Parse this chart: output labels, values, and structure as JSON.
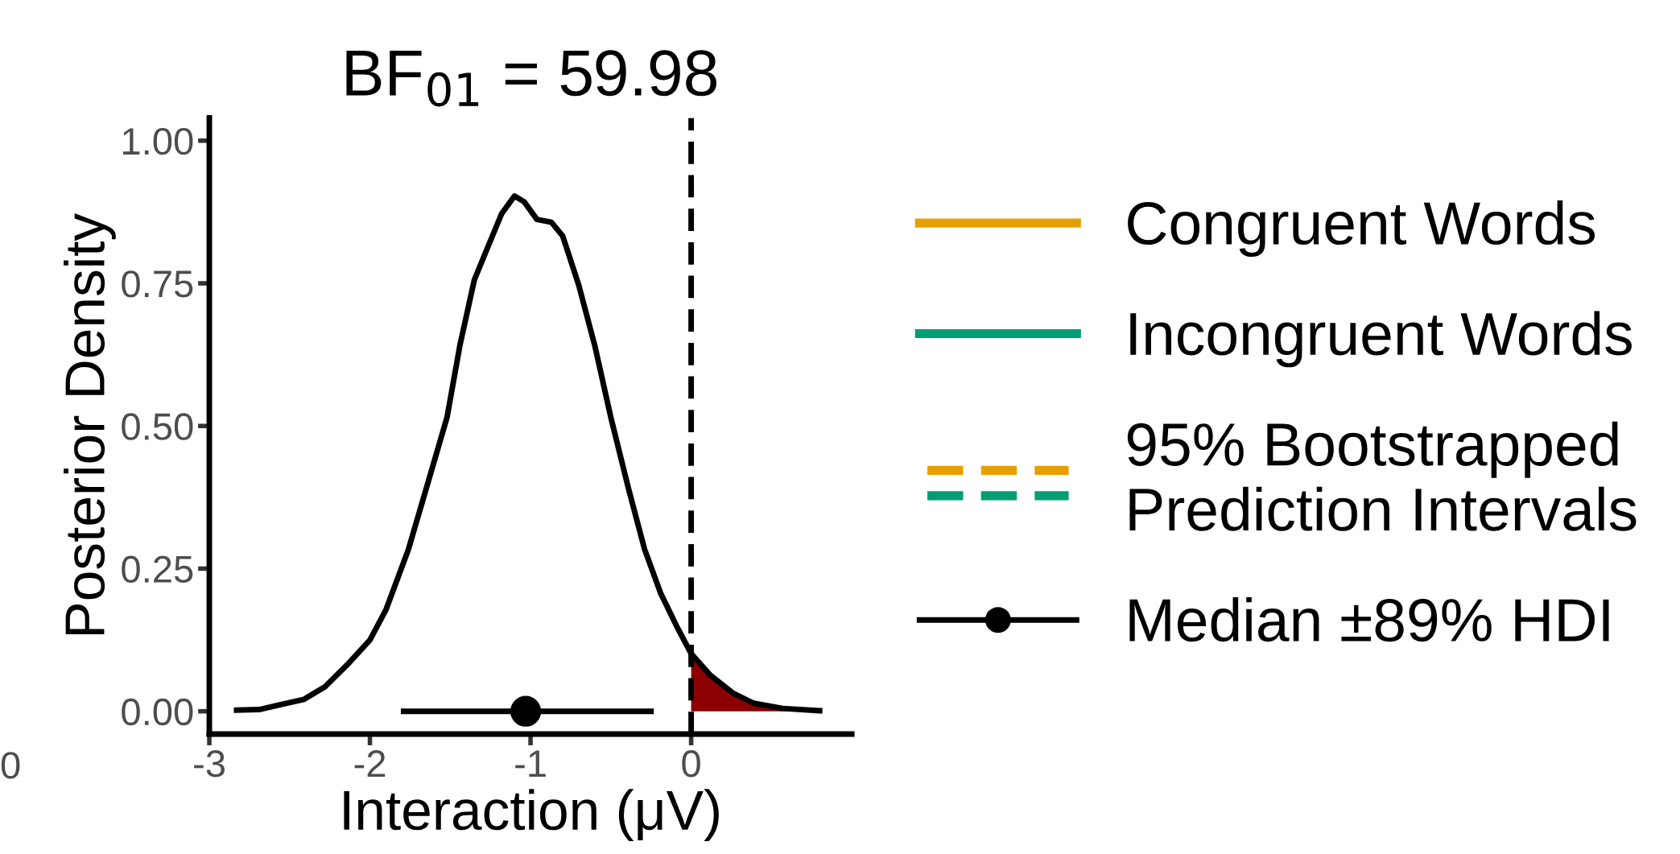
{
  "chart_data": {
    "type": "line",
    "title": "BF$_{01}$ = 59.98",
    "xlabel": "Interaction (μV)",
    "ylabel": "Posterior Density",
    "xlim": [
      -3.0,
      1.0
    ],
    "ylim": [
      -0.04,
      1.04
    ],
    "xticks": [
      -3,
      -2,
      -1,
      0
    ],
    "yticks": [
      {
        "value": 0,
        "label": "0.00"
      },
      {
        "value": 0.25,
        "label": "0.25"
      },
      {
        "value": 0.5,
        "label": "0.50"
      },
      {
        "value": 0.75,
        "label": "0.75"
      },
      {
        "value": 1,
        "label": "1.00"
      }
    ],
    "grid": false,
    "legend": "right",
    "line_style": "solid",
    "marker": "none",
    "annotations": [
      "0"
    ],
    "ref_lines": [
      {
        "axis": "x",
        "value": 0,
        "color": "#000000",
        "line_style": "dashed"
      }
    ],
    "series": [
      {
        "type": "area",
        "color": "#8b0000",
        "x": [
          0,
          0.12,
          0.26,
          0.39,
          0.57,
          0.8
        ],
        "values": [
          0.101,
          0.063,
          0.032,
          0.014,
          0.005,
          0.001
        ]
      },
      {
        "color": "#000000",
        "x": [
          -2.83,
          -2.69,
          -2.55,
          -2.41,
          -2.28,
          -2.14,
          -2.0,
          -1.9,
          -1.76,
          -1.63,
          -1.52,
          -1.44,
          -1.35,
          -1.28,
          -1.18,
          -1.1,
          -1.04,
          -0.96,
          -0.87,
          -0.8,
          -0.7,
          -0.6,
          -0.5,
          -0.39,
          -0.29,
          -0.19,
          -0.09,
          0,
          0.12,
          0.26,
          0.39,
          0.57,
          0.8
        ],
        "values": [
          0.002,
          0.003,
          0.012,
          0.021,
          0.043,
          0.082,
          0.125,
          0.178,
          0.284,
          0.409,
          0.515,
          0.641,
          0.756,
          0.804,
          0.872,
          0.903,
          0.893,
          0.862,
          0.857,
          0.833,
          0.747,
          0.641,
          0.515,
          0.39,
          0.284,
          0.207,
          0.149,
          0.101,
          0.063,
          0.032,
          0.014,
          0.005,
          0.001
        ]
      },
      {
        "name": "Congruent Words",
        "color": "#e69f00"
      },
      {
        "name": "Incongruent Words",
        "color": "#009e73"
      },
      {
        "name": "95% Bootstrapped\nPrediction Intervals",
        "color": "#e69f00",
        "line_style": "dashed"
      },
      {
        "color": "#009e73",
        "line_style": "dashed"
      },
      {
        "type": "scatter",
        "name": "Median ±89% HDI",
        "color": "#000000",
        "marker": "circle",
        "x": [
          -1.03
        ],
        "values": [
          0
        ],
        "xerrors": [
          [
            -1.79,
            -0.25
          ]
        ]
      }
    ]
  }
}
